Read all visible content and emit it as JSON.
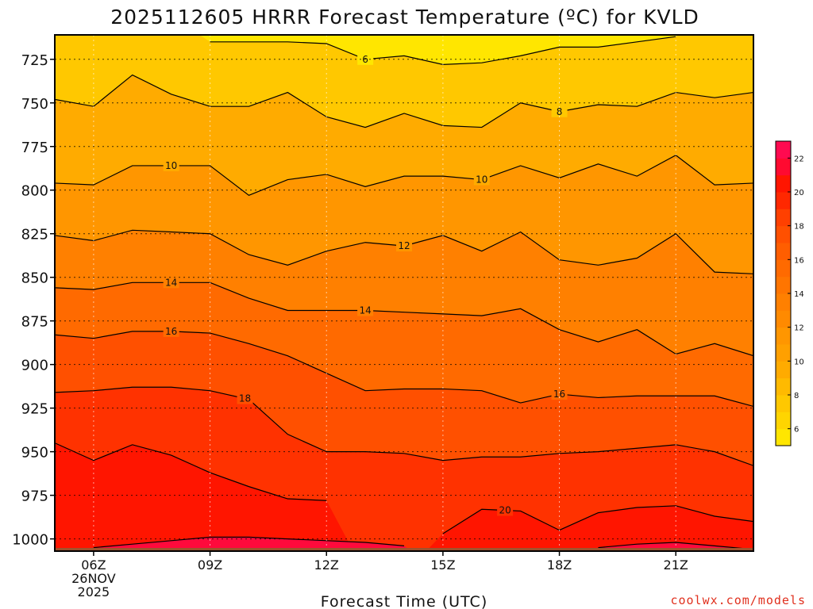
{
  "title": "2025112605 HRRR Forecast Temperature (ºC) for KVLD",
  "credit": "coolwx.com/models",
  "colors": {
    "ground": "#a0522d",
    "contour_line": "#000000",
    "grid": "#666666",
    "fills": [
      "#ffe600",
      "#ffc800",
      "#ffab00",
      "#ff9600",
      "#ff8000",
      "#ff6a00",
      "#ff5000",
      "#ff3200",
      "#ff1500",
      "#ff0a3c",
      "#ff0066"
    ]
  },
  "chart_data": {
    "type": "heatmap",
    "subtype": "time-height filled contour",
    "xlabel": "Forecast Time (UTC)",
    "ylabel": "",
    "x_ticks": [
      {
        "h": 6,
        "label": "06Z",
        "sub": [
          "26NOV",
          "2025"
        ]
      },
      {
        "h": 9,
        "label": "09Z"
      },
      {
        "h": 12,
        "label": "12Z"
      },
      {
        "h": 15,
        "label": "15Z"
      },
      {
        "h": 18,
        "label": "18Z"
      },
      {
        "h": 21,
        "label": "21Z"
      }
    ],
    "xlim": [
      5,
      23
    ],
    "y_ticks": [
      725,
      750,
      775,
      800,
      825,
      850,
      875,
      900,
      925,
      950,
      975,
      1000
    ],
    "ylim": [
      711,
      1007
    ],
    "y_inverted": true,
    "ground_level_hPa": 1007,
    "grid": true,
    "colorbar": {
      "labels": [
        6,
        8,
        10,
        12,
        14,
        16,
        18,
        20,
        22
      ],
      "levels": [
        5,
        6,
        7,
        8,
        9,
        10,
        11,
        12,
        13,
        14,
        15,
        16,
        17,
        18,
        19,
        20,
        21,
        22,
        23
      ]
    },
    "x": [
      5,
      6,
      7,
      8,
      9,
      10,
      11,
      12,
      13,
      14,
      15,
      16,
      17,
      18,
      19,
      20,
      21,
      22,
      23
    ],
    "isotherms": [
      {
        "temp": 6,
        "label": "6",
        "label_at": 13,
        "p": [
          null,
          null,
          null,
          null,
          715,
          715,
          715,
          716,
          725,
          723,
          728,
          727,
          723,
          718,
          718,
          715,
          712,
          null,
          null
        ]
      },
      {
        "temp": 8,
        "label": "8",
        "label_at": 18,
        "p": [
          748,
          752,
          734,
          745,
          752,
          752,
          744,
          758,
          764,
          756,
          763,
          764,
          750,
          755,
          751,
          752,
          744,
          747,
          744
        ]
      },
      {
        "temp": 10,
        "label": "10",
        "label_at": 8,
        "label_at2": 16,
        "p": [
          796,
          797,
          786,
          786,
          786,
          803,
          794,
          791,
          798,
          792,
          792,
          794,
          786,
          793,
          785,
          792,
          780,
          797,
          796
        ]
      },
      {
        "temp": 12,
        "label": "12",
        "label_at": 14,
        "p": [
          826,
          829,
          823,
          824,
          825,
          837,
          843,
          835,
          830,
          832,
          826,
          835,
          824,
          840,
          843,
          839,
          825,
          847,
          848
        ]
      },
      {
        "temp": 14,
        "label": "14",
        "label_at": 8,
        "label_at2": 13,
        "p": [
          856,
          857,
          853,
          853,
          853,
          862,
          869,
          869,
          869,
          870,
          871,
          872,
          868,
          880,
          887,
          880,
          894,
          888,
          895
        ]
      },
      {
        "temp": 16,
        "label": "16",
        "label_at": 8,
        "label_at2": 18,
        "p": [
          883,
          885,
          881,
          881,
          882,
          888,
          895,
          905,
          915,
          914,
          914,
          915,
          922,
          917,
          919,
          918,
          918,
          918,
          924
        ]
      },
      {
        "temp": 18,
        "label": "18",
        "label_at": 9.9,
        "p": [
          916,
          915,
          913,
          913,
          915,
          920,
          940,
          950,
          950,
          951,
          955,
          953,
          953,
          951,
          950,
          948,
          946,
          950,
          958
        ]
      },
      {
        "temp": 20,
        "label": "20",
        "label_at": 16.6,
        "p": [
          945,
          955,
          946,
          952,
          962,
          970,
          977,
          978,
          null,
          null,
          997,
          983,
          984,
          995,
          985,
          982,
          981,
          987,
          990
        ]
      },
      {
        "temp": 22,
        "label": "",
        "label_at": null,
        "p": [
          null,
          1005,
          1003,
          1001,
          999,
          999,
          1000,
          1001,
          1002,
          1004,
          null,
          null,
          null,
          null,
          1005,
          1003,
          1002,
          1004,
          1006
        ]
      }
    ]
  }
}
